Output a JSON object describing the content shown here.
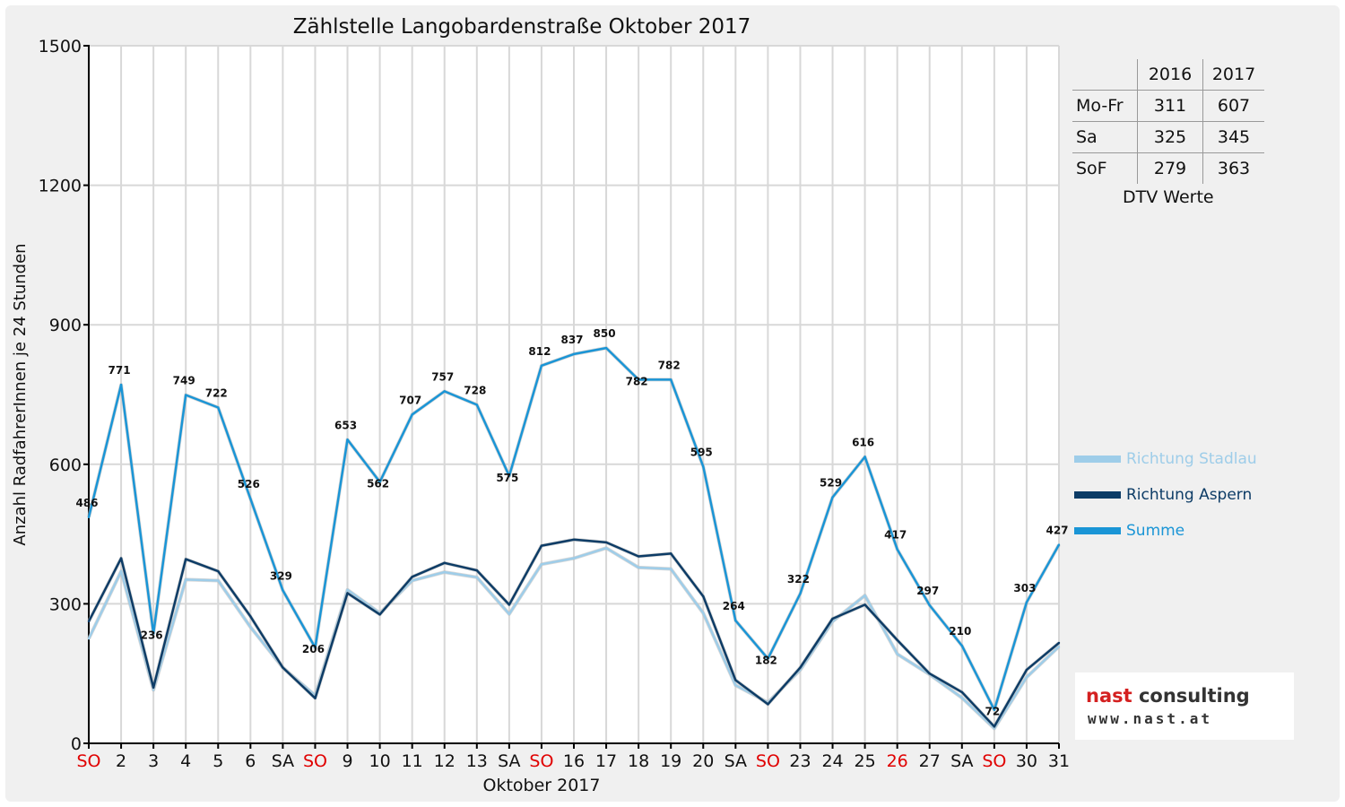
{
  "chart_data": {
    "type": "line",
    "title": "Zählstelle Langobardenstraße Oktober 2017",
    "xlabel": "Oktober 2017",
    "ylabel": "Anzahl RadfahrerInnen je 24 Stunden",
    "ylim": [
      0,
      1500
    ],
    "yticks": [
      0,
      300,
      600,
      900,
      1200,
      1500
    ],
    "grid": true,
    "categories": [
      "SO",
      "2",
      "3",
      "4",
      "5",
      "6",
      "SA",
      "SO",
      "9",
      "10",
      "11",
      "12",
      "13",
      "SA",
      "SO",
      "16",
      "17",
      "18",
      "19",
      "20",
      "SA",
      "SO",
      "23",
      "24",
      "25",
      "26",
      "27",
      "SA",
      "SO",
      "30",
      "31"
    ],
    "holiday_categories": [
      0,
      7,
      14,
      21,
      25,
      28
    ],
    "series": [
      {
        "name": "Richtung Stadlau",
        "color": "#9ecde9",
        "values": [
          225,
          370,
          115,
          352,
          350,
          250,
          163,
          103,
          330,
          280,
          350,
          368,
          357,
          278,
          385,
          398,
          420,
          378,
          375,
          280,
          125,
          88,
          158,
          262,
          318,
          192,
          148,
          98,
          32,
          142,
          208
        ]
      },
      {
        "name": "Richtung Aspern",
        "color": "#0d3c66",
        "values": [
          262,
          398,
          120,
          396,
          370,
          273,
          163,
          97,
          323,
          277,
          358,
          388,
          372,
          298,
          425,
          438,
          432,
          402,
          408,
          316,
          136,
          84,
          163,
          268,
          298,
          222,
          150,
          110,
          36,
          158,
          216
        ]
      },
      {
        "name": "Summe",
        "color": "#1a95d6",
        "labeled": true,
        "values": [
          486,
          771,
          236,
          749,
          722,
          526,
          329,
          206,
          653,
          562,
          707,
          757,
          728,
          575,
          812,
          837,
          850,
          782,
          782,
          595,
          264,
          182,
          322,
          529,
          616,
          417,
          297,
          210,
          72,
          303,
          427
        ]
      }
    ],
    "legend_position": "right"
  },
  "dtv_table": {
    "headers": [
      "2016",
      "2017"
    ],
    "rows": [
      {
        "label": "Mo-Fr",
        "v2016": "311",
        "v2017": "607"
      },
      {
        "label": "Sa",
        "v2016": "325",
        "v2017": "345"
      },
      {
        "label": "SoF",
        "v2016": "279",
        "v2017": "363"
      }
    ],
    "caption": "DTV Werte"
  },
  "legend": [
    {
      "label": "Richtung Stadlau",
      "color": "#9ecde9"
    },
    {
      "label": "Richtung Aspern",
      "color": "#0d3c66"
    },
    {
      "label": "Summe",
      "color": "#1a95d6"
    }
  ],
  "logo": {
    "brand_part1": "nast",
    "brand_part2": "consulting",
    "url": "www.nast.at"
  },
  "colors": {
    "holiday": "#e00000",
    "axis": "#000000",
    "grid": "#d8d8d8"
  }
}
